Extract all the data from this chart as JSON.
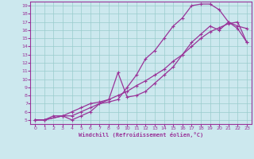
{
  "xlabel": "Windchill (Refroidissement éolien,°C)",
  "bg_color": "#cce8ee",
  "line_color": "#993399",
  "grid_color": "#99cccc",
  "xlim": [
    -0.5,
    23.5
  ],
  "ylim": [
    4.5,
    19.5
  ],
  "xticks": [
    0,
    1,
    2,
    3,
    4,
    5,
    6,
    7,
    8,
    9,
    10,
    11,
    12,
    13,
    14,
    15,
    16,
    17,
    18,
    19,
    20,
    21,
    22,
    23
  ],
  "yticks": [
    5,
    6,
    7,
    8,
    9,
    10,
    11,
    12,
    13,
    14,
    15,
    16,
    17,
    18,
    19
  ],
  "line1_x": [
    0,
    1,
    3,
    4,
    5,
    6,
    7,
    8,
    9,
    10,
    11,
    12,
    13,
    14,
    15,
    16,
    17,
    18,
    19,
    20,
    21,
    22,
    23
  ],
  "line1_y": [
    5,
    5,
    5.5,
    5.5,
    6,
    6.5,
    7,
    7.2,
    7.5,
    9,
    10.5,
    12.5,
    13.5,
    15,
    16.5,
    17.5,
    19,
    19.2,
    19.2,
    18.5,
    17,
    16.5,
    16.2
  ],
  "line2_x": [
    0,
    1,
    3,
    4,
    5,
    6,
    7,
    8,
    9,
    10,
    11,
    12,
    13,
    14,
    15,
    16,
    17,
    18,
    19,
    20,
    21,
    22,
    23
  ],
  "line2_y": [
    5,
    5,
    5.5,
    5,
    5.5,
    6,
    7,
    7.5,
    10.8,
    7.8,
    8,
    8.5,
    9.5,
    10.5,
    11.5,
    13,
    14.5,
    15.5,
    16.5,
    16,
    17,
    16.2,
    14.5
  ],
  "line3_x": [
    0,
    1,
    2,
    3,
    4,
    5,
    6,
    7,
    8,
    9,
    10,
    11,
    12,
    13,
    14,
    15,
    16,
    17,
    18,
    19,
    20,
    21,
    22,
    23
  ],
  "line3_y": [
    5,
    5,
    5.5,
    5.5,
    6,
    6.5,
    7,
    7.2,
    7.5,
    8,
    8.5,
    9.2,
    9.8,
    10.5,
    11.2,
    12.2,
    13,
    14,
    15,
    15.8,
    16.3,
    16.8,
    17,
    14.5
  ]
}
